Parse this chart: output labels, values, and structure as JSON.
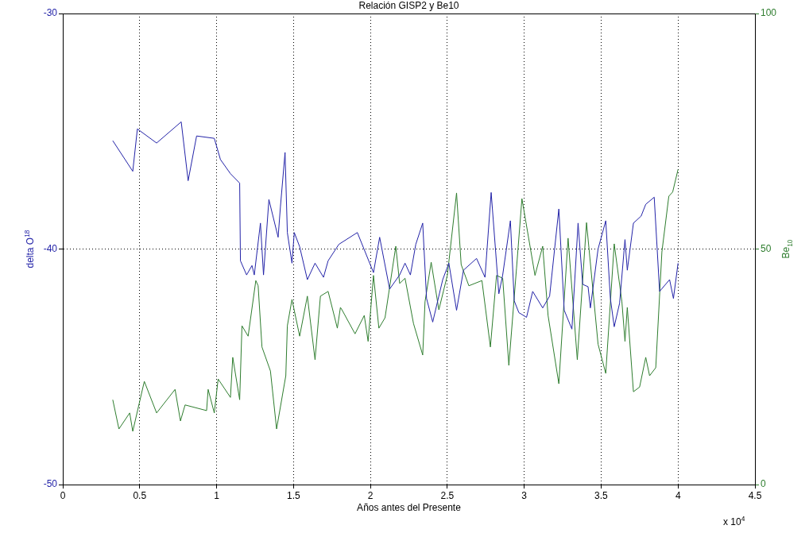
{
  "chart_data": {
    "type": "line",
    "title": "Relación GISP2 y Be10",
    "xlabel": "Años antes del Presente",
    "ylabel": "delta O$^{18}$",
    "y2label": "Be$_{10}$",
    "annotations": [
      "x 10$^{4}$"
    ],
    "xlim": [
      0,
      4.5
    ],
    "xticks": [
      0,
      0.5,
      1,
      1.5,
      2,
      2.5,
      3,
      3.5,
      4,
      4.5
    ],
    "ylim": [
      -50,
      -30
    ],
    "yticks": [
      -50,
      -40,
      -30
    ],
    "y2lim": [
      0,
      100
    ],
    "y2ticks": [
      0,
      50,
      100
    ],
    "grid": true,
    "marker": "none",
    "line_style": "solid",
    "series": [
      {
        "color": "#2323a8",
        "x": [
          0.325,
          0.455,
          0.485,
          0.61,
          0.77,
          0.815,
          0.87,
          0.985,
          1.025,
          1.09,
          1.15,
          1.155,
          1.195,
          1.23,
          1.245,
          1.285,
          1.305,
          1.34,
          1.4,
          1.415,
          1.445,
          1.46,
          1.49,
          1.505,
          1.54,
          1.59,
          1.64,
          1.695,
          1.725,
          1.795,
          1.915,
          2.02,
          2.06,
          2.125,
          2.19,
          2.225,
          2.26,
          2.295,
          2.34,
          2.365,
          2.405,
          2.47,
          2.51,
          2.56,
          2.605,
          2.69,
          2.745,
          2.785,
          2.835,
          2.86,
          2.91,
          2.935,
          2.965,
          3.015,
          3.055,
          3.12,
          3.165,
          3.225,
          3.26,
          3.31,
          3.35,
          3.38,
          3.415,
          3.43,
          3.48,
          3.53,
          3.56,
          3.585,
          3.62,
          3.655,
          3.67,
          3.71,
          3.76,
          3.79,
          3.845,
          3.88,
          3.945,
          3.97,
          4.0
        ],
        "values": [
          -35.4,
          -36.7,
          -34.9,
          -35.5,
          -34.6,
          -37.1,
          -35.2,
          -35.3,
          -36.2,
          -36.8,
          -37.2,
          -40.5,
          -41.1,
          -40.7,
          -41.1,
          -38.9,
          -41.1,
          -37.9,
          -39.5,
          -38.2,
          -35.9,
          -39.3,
          -40.6,
          -39.3,
          -39.9,
          -41.3,
          -40.6,
          -41.2,
          -40.5,
          -39.8,
          -39.3,
          -41.0,
          -39.5,
          -41.7,
          -41.1,
          -40.6,
          -41.1,
          -39.8,
          -38.9,
          -42.1,
          -43.1,
          -41.3,
          -40.6,
          -42.6,
          -40.9,
          -40.4,
          -41.2,
          -37.6,
          -41.9,
          -41.1,
          -38.8,
          -42.2,
          -42.7,
          -42.9,
          -41.8,
          -42.5,
          -42.0,
          -38.3,
          -42.6,
          -43.4,
          -38.9,
          -41.5,
          -41.6,
          -42.5,
          -40.0,
          -38.8,
          -42.1,
          -43.3,
          -42.3,
          -39.6,
          -40.9,
          -38.9,
          -38.6,
          -38.1,
          -37.8,
          -41.8,
          -41.3,
          -42.1,
          -40.6
        ]
      },
      {
        "color": "#2e7d2e",
        "axis": "y2",
        "x": [
          0.325,
          0.365,
          0.435,
          0.455,
          0.53,
          0.61,
          0.73,
          0.765,
          0.795,
          0.935,
          0.945,
          0.985,
          1.01,
          1.09,
          1.105,
          1.15,
          1.165,
          1.205,
          1.255,
          1.27,
          1.295,
          1.35,
          1.39,
          1.45,
          1.46,
          1.49,
          1.54,
          1.59,
          1.64,
          1.675,
          1.725,
          1.785,
          1.805,
          1.815,
          1.9,
          1.96,
          1.985,
          2.02,
          2.055,
          2.095,
          2.165,
          2.19,
          2.225,
          2.28,
          2.34,
          2.355,
          2.395,
          2.445,
          2.5,
          2.56,
          2.59,
          2.64,
          2.725,
          2.78,
          2.82,
          2.86,
          2.9,
          2.95,
          2.985,
          3.07,
          3.12,
          3.155,
          3.225,
          3.285,
          3.345,
          3.405,
          3.48,
          3.53,
          3.585,
          3.635,
          3.655,
          3.67,
          3.71,
          3.75,
          3.79,
          3.815,
          3.855,
          3.895,
          3.94,
          3.965,
          4.0
        ],
        "values": [
          18.0,
          11.8,
          15.2,
          11.3,
          21.9,
          15.2,
          20.2,
          13.5,
          16.9,
          15.7,
          20.2,
          15.2,
          22.4,
          18.5,
          27.0,
          18.0,
          33.7,
          31.5,
          43.3,
          42.2,
          29.2,
          24.1,
          11.8,
          23.1,
          33.7,
          39.3,
          31.5,
          40.0,
          26.5,
          40.0,
          41.0,
          33.2,
          37.6,
          37.1,
          32.0,
          35.9,
          30.4,
          44.4,
          33.2,
          35.4,
          50.6,
          42.7,
          43.8,
          34.2,
          27.5,
          38.8,
          47.2,
          37.1,
          44.4,
          61.9,
          46.7,
          42.2,
          43.3,
          29.2,
          44.4,
          43.8,
          25.3,
          46.0,
          60.7,
          44.4,
          50.6,
          35.9,
          21.4,
          52.3,
          26.5,
          55.6,
          29.8,
          23.6,
          51.1,
          38.8,
          30.4,
          37.6,
          19.7,
          20.7,
          27.0,
          23.1,
          24.8,
          49.4,
          61.2,
          62.1,
          66.9
        ]
      }
    ]
  }
}
